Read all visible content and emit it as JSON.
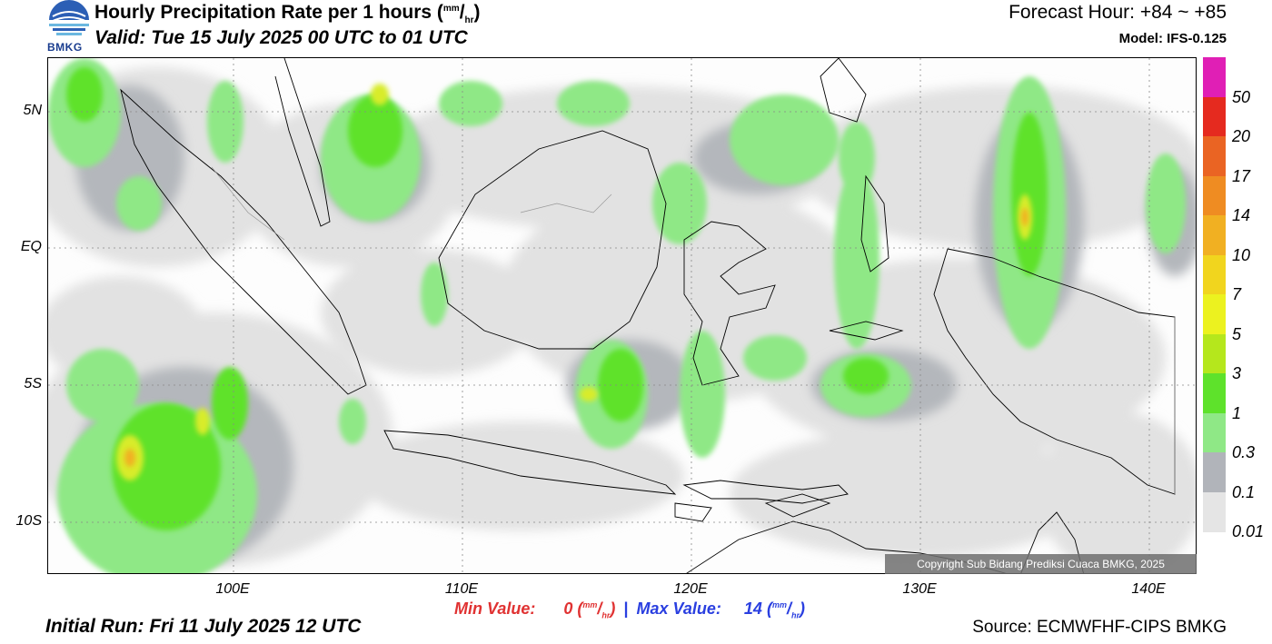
{
  "header": {
    "title_text": "Hourly Precipitation Rate per 1 hours (",
    "title_unit_num": "mm",
    "title_unit_den": "hr",
    "title_end": ")",
    "valid": "Valid: Tue 15 July 2025 00 UTC to 01 UTC",
    "forecast_hour": "Forecast Hour: +84 ~ +85",
    "model": "Model: IFS-0.125",
    "logo_text": "BMKG"
  },
  "axes": {
    "lat_labels": [
      "5N",
      "EQ",
      "5S",
      "10S"
    ],
    "lon_labels": [
      "100E",
      "110E",
      "120E",
      "130E",
      "140E"
    ]
  },
  "colorbar": {
    "labels": [
      "50",
      "20",
      "17",
      "14",
      "10",
      "7",
      "5",
      "3",
      "1",
      "0.3",
      "0.1",
      "0.01"
    ],
    "colors": [
      "#e01fb5",
      "#e52a1f",
      "#ea6423",
      "#ef8c22",
      "#f1b022",
      "#f1d51e",
      "#ecf21f",
      "#b5e71c",
      "#5ee22b",
      "#8fe886",
      "#b1b4ba",
      "#e5e5e5"
    ]
  },
  "stats": {
    "min_label": "Min Value:",
    "min_value": "0",
    "max_label": "Max Value:",
    "max_value": "14",
    "unit_num": "mm",
    "unit_den": "hr",
    "separator": "|"
  },
  "footer": {
    "initial_run": "Initial Run: Fri 11 July 2025 12 UTC",
    "source": "Source: ECMWFHF-CIPS BMKG",
    "copyright": "Copyright Sub Bidang Prediksi Cuaca BMKG, 2025"
  }
}
